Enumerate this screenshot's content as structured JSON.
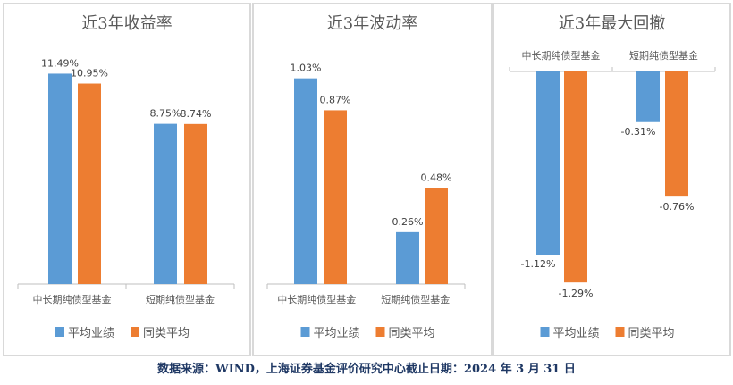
{
  "colors": {
    "series1": "#5b9bd5",
    "series2": "#ed7d31",
    "footer": "#1f3864"
  },
  "chart_data": [
    {
      "type": "bar",
      "title": "近3年收益率",
      "categories": [
        "中长期纯债型基金",
        "短期纯债型基金"
      ],
      "series": [
        {
          "name": "平均业绩",
          "values": [
            11.49,
            8.75
          ],
          "labels": [
            "11.49%",
            "8.75%"
          ]
        },
        {
          "name": "同类平均",
          "values": [
            10.95,
            8.74
          ],
          "labels": [
            "10.95%",
            "8.74%"
          ]
        }
      ],
      "ylim": [
        0,
        12
      ],
      "legend": "bottom",
      "grid": false
    },
    {
      "type": "bar",
      "title": "近3年波动率",
      "categories": [
        "中长期纯债型基金",
        "短期纯债型基金"
      ],
      "series": [
        {
          "name": "平均业绩",
          "values": [
            1.03,
            0.26
          ],
          "labels": [
            "1.03%",
            "0.26%"
          ]
        },
        {
          "name": "同类平均",
          "values": [
            0.87,
            0.48
          ],
          "labels": [
            "0.87%",
            "0.48%"
          ]
        }
      ],
      "ylim": [
        0,
        1.1
      ],
      "legend": "bottom",
      "grid": false
    },
    {
      "type": "bar",
      "title": "近3年最大回撤",
      "categories": [
        "中长期纯债型基金",
        "短期纯债型基金"
      ],
      "series": [
        {
          "name": "平均业绩",
          "values": [
            -1.12,
            -0.31
          ],
          "labels": [
            "-1.12%",
            "-0.31%"
          ]
        },
        {
          "name": "同类平均",
          "values": [
            -1.29,
            -0.76
          ],
          "labels": [
            "-1.29%",
            "-0.76%"
          ]
        }
      ],
      "ylim": [
        -1.3,
        0
      ],
      "legend": "bottom",
      "grid": false
    }
  ],
  "footer": "数据来源：WIND，上海证券基金评价研究中心截止日期：2024 年 3 月 31 日"
}
